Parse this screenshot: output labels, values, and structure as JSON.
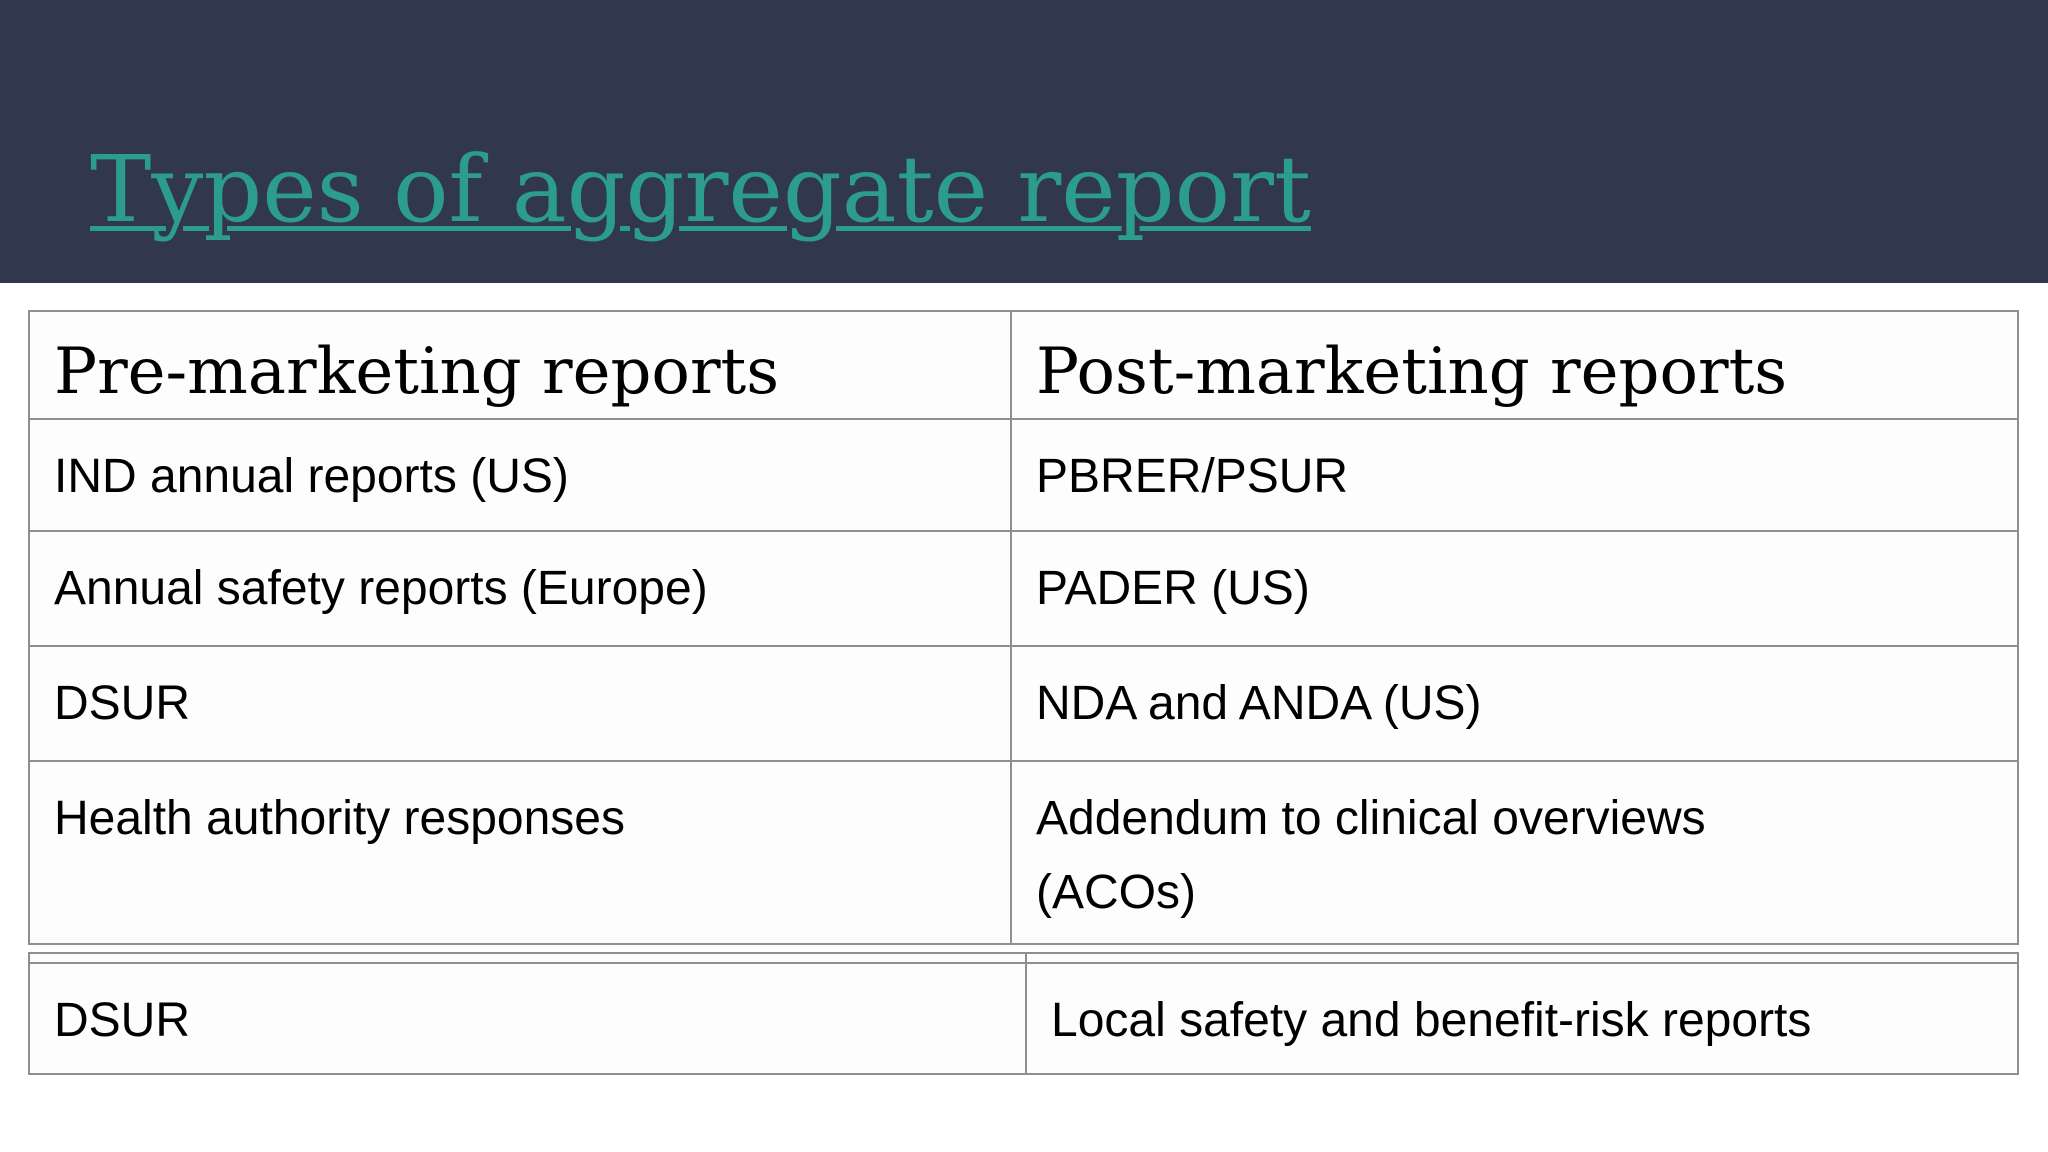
{
  "slide": {
    "title": "Types of aggregate report"
  },
  "theme": {
    "banner_color": "#31384D",
    "title_color": "#2C9D8D",
    "table_border_color": "#8F8F8F",
    "body_text_color": "#000000"
  },
  "table1": {
    "headers": [
      "Pre-marketing reports",
      "Post-marketing reports"
    ],
    "rows": [
      [
        "IND annual reports (US)",
        "PBRER/PSUR"
      ],
      [
        "Annual safety reports (Europe)",
        "PADER (US)"
      ],
      [
        "DSUR",
        "NDA and ANDA (US)"
      ],
      [
        "Health authority responses",
        "Addendum to clinical overviews\n(ACOs)"
      ]
    ]
  },
  "table2": {
    "rows": [
      [
        "DSUR",
        "Local safety and benefit-risk reports"
      ]
    ]
  }
}
